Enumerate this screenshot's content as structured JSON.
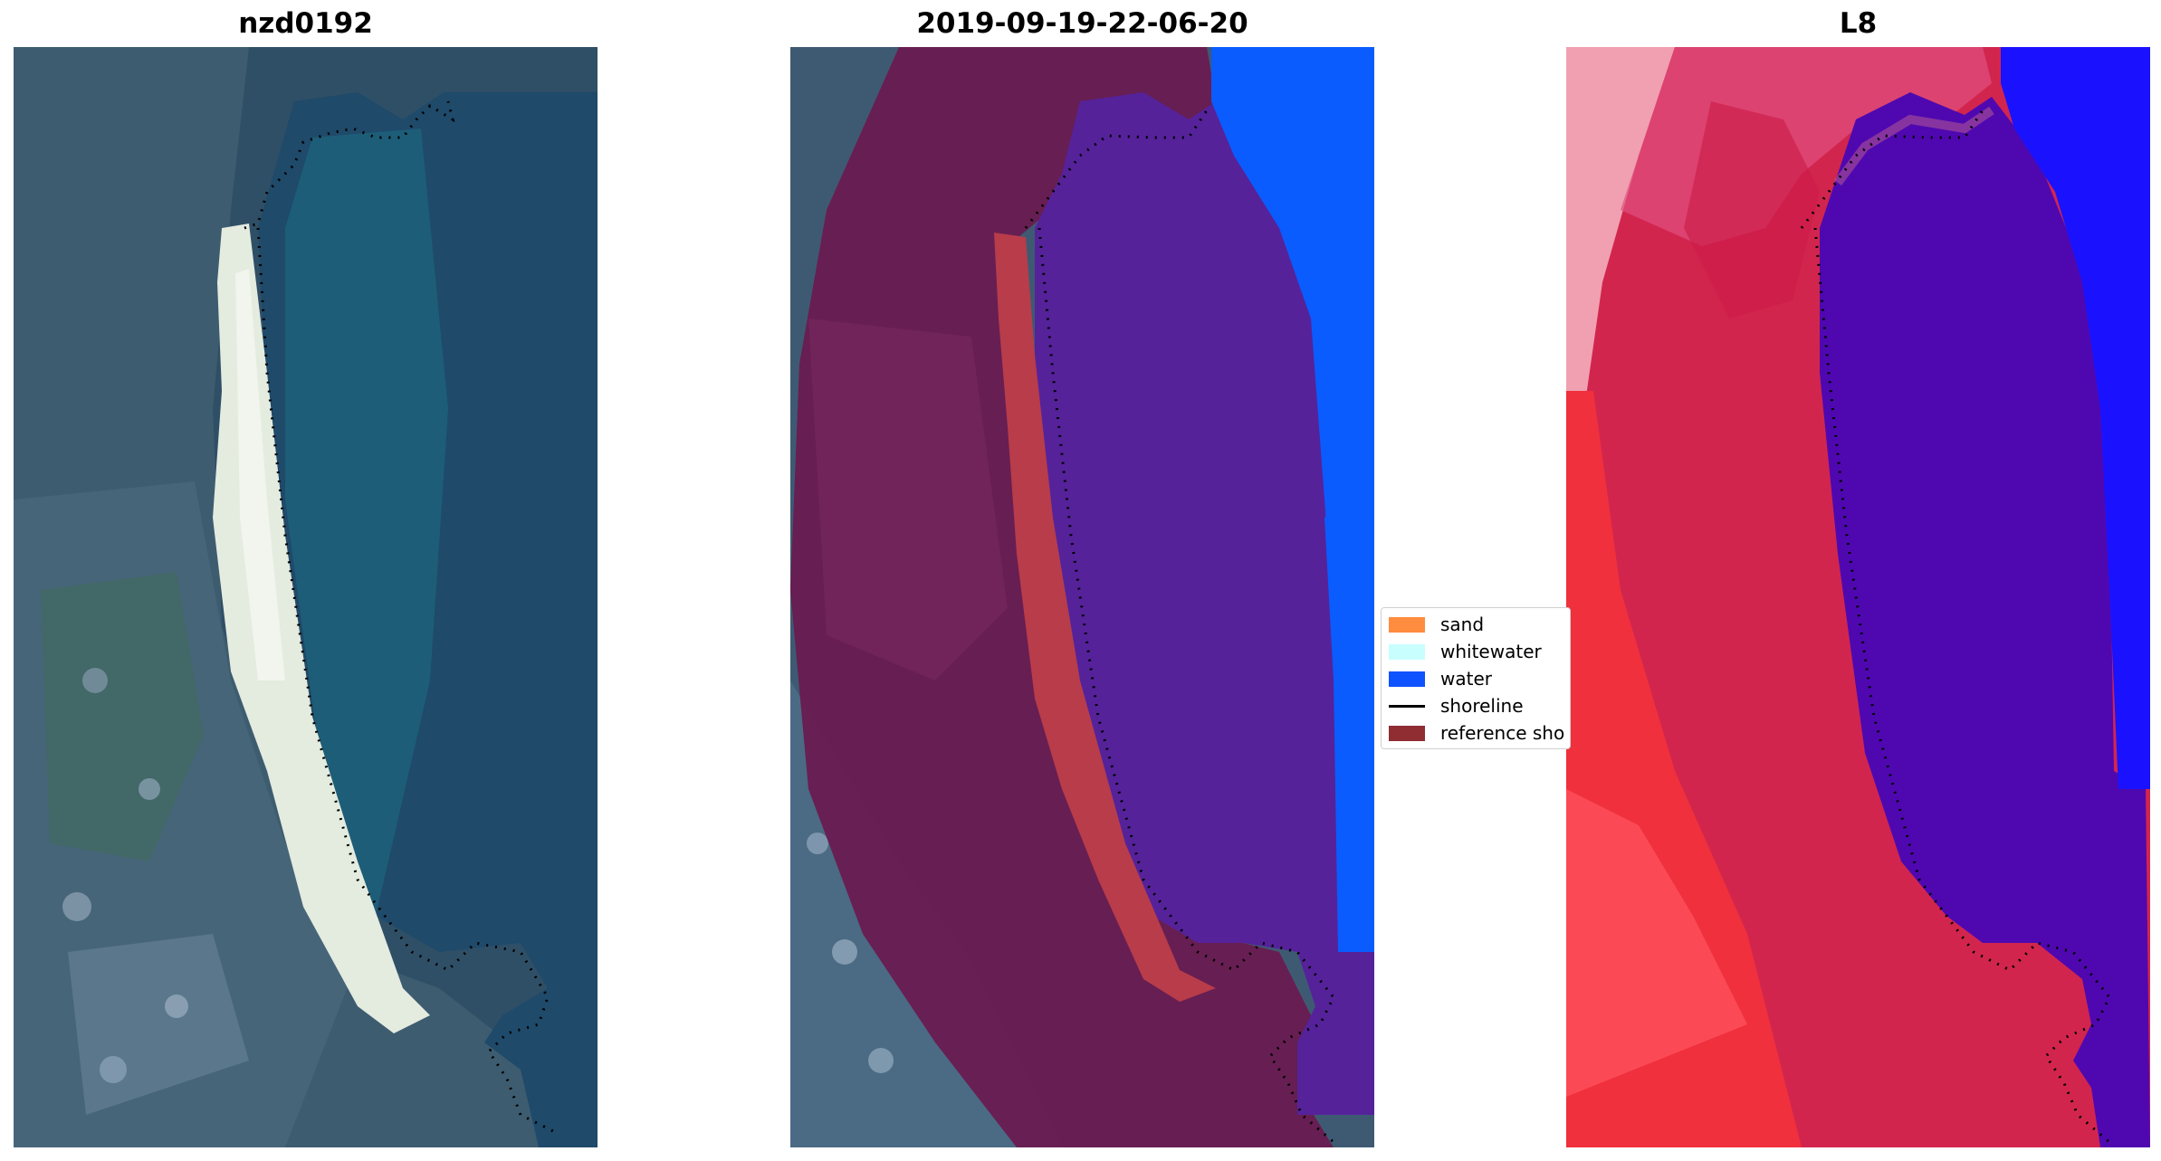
{
  "panels": {
    "rgb": {
      "title": "nzd0192"
    },
    "classified": {
      "title": "2019-09-19-22-06-20"
    },
    "index": {
      "title": "L8"
    }
  },
  "legend": {
    "items": [
      {
        "label": "sand",
        "color": "#ff8c3f"
      },
      {
        "label": "whitewater",
        "color": "#c8fefe"
      },
      {
        "label": "water",
        "color": "#0f53ff"
      },
      {
        "label": "shoreline",
        "color": "#000000"
      },
      {
        "label": "reference sho",
        "color": "#8f2d33"
      }
    ]
  },
  "colors": {
    "ocean_rgb": "#1e4a6b",
    "land_rgb": "#3b5a6e",
    "beach_rgb": "#e6ece0",
    "reference_overlay": "#6a1a4f",
    "ocean_overlay": "#54209a",
    "sand_overlay": "#b83c4a",
    "water_class": "#0a5cff",
    "index_land": "#d61c46",
    "index_water": "#4d00b0",
    "index_deep": "#1a12ff"
  }
}
